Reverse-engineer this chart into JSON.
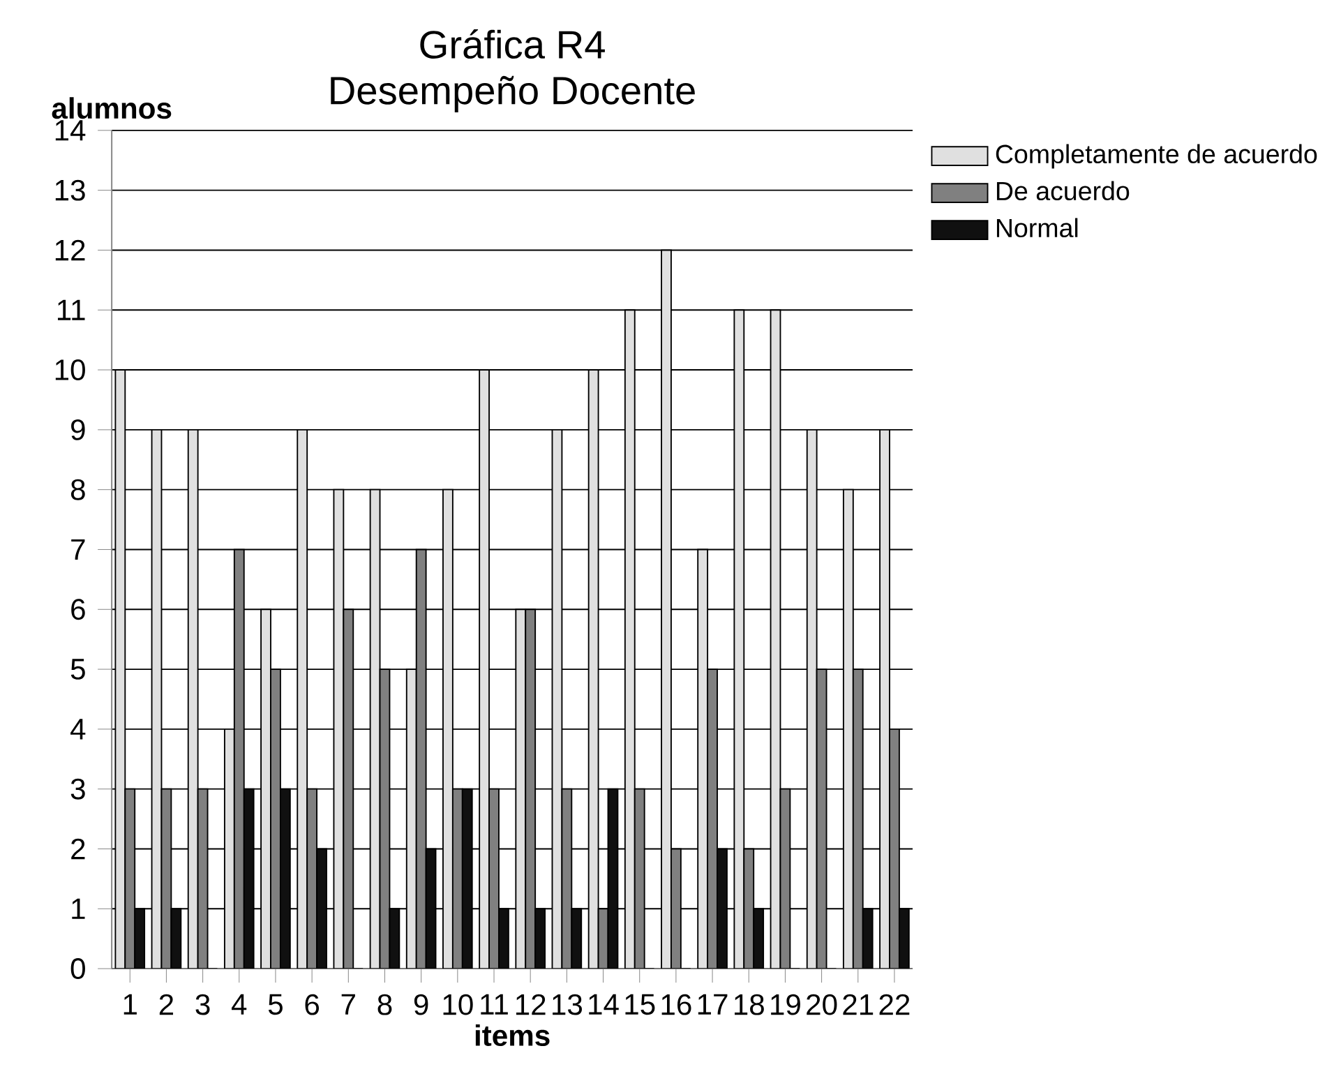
{
  "chart_data": {
    "type": "bar",
    "title": "Gráfica R4",
    "subtitle": "Desempeño Docente",
    "xlabel": "items",
    "ylabel": "alumnos",
    "categories": [
      "1",
      "2",
      "3",
      "4",
      "5",
      "6",
      "7",
      "8",
      "9",
      "10",
      "11",
      "12",
      "13",
      "14",
      "15",
      "16",
      "17",
      "18",
      "19",
      "20",
      "21",
      "22"
    ],
    "series": [
      {
        "name": "Completamente de acuerdo",
        "color": "#e0e0e0",
        "values": [
          10,
          9,
          9,
          4,
          6,
          9,
          8,
          8,
          5,
          8,
          10,
          6,
          9,
          10,
          11,
          12,
          7,
          11,
          11,
          9,
          8,
          9
        ]
      },
      {
        "name": "De acuerdo",
        "color": "#808080",
        "values": [
          3,
          3,
          3,
          7,
          5,
          3,
          6,
          5,
          7,
          3,
          3,
          6,
          3,
          1,
          3,
          2,
          5,
          2,
          3,
          5,
          5,
          4
        ]
      },
      {
        "name": "Normal",
        "color": "#101010",
        "values": [
          1,
          1,
          0,
          3,
          3,
          2,
          0,
          1,
          2,
          3,
          1,
          1,
          1,
          3,
          0,
          0,
          2,
          1,
          0,
          0,
          1,
          1
        ]
      }
    ],
    "ylim": [
      0,
      14
    ],
    "yticks": [
      0,
      1,
      2,
      3,
      4,
      5,
      6,
      7,
      8,
      9,
      10,
      11,
      12,
      13,
      14
    ],
    "grid": "y",
    "legend": "top right"
  }
}
